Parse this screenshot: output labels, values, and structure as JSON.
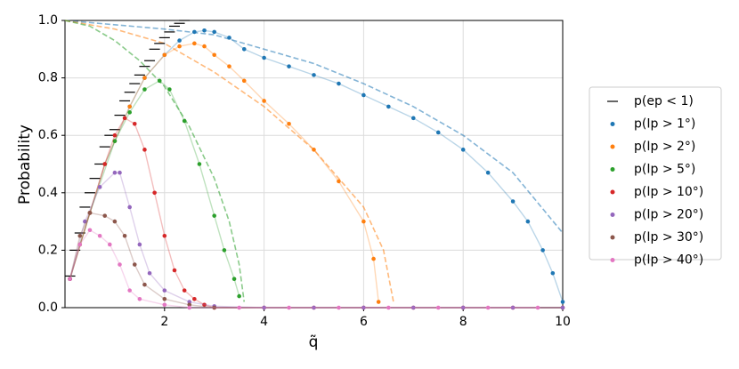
{
  "chart_data": {
    "type": "scatter",
    "xlabel": "q̃",
    "ylabel": "Probability",
    "xlim": [
      0,
      10
    ],
    "ylim": [
      0,
      1
    ],
    "xticks": [
      2,
      4,
      6,
      8,
      10
    ],
    "yticks": [
      {
        "value": 0,
        "label": "0.0"
      },
      0.2,
      0.4,
      0.6,
      0.8,
      {
        "value": 1,
        "label": "1.0"
      }
    ],
    "grid": true,
    "legend": "right",
    "series": [
      {
        "name": "p(ep < 1)",
        "color": "#000000",
        "marker": "hline",
        "x": [
          0.1,
          0.2,
          0.3,
          0.4,
          0.5,
          0.6,
          0.7,
          0.8,
          0.9,
          1.0,
          1.1,
          1.2,
          1.3,
          1.4,
          1.5,
          1.6,
          1.7,
          1.8,
          1.9,
          2.0,
          2.1,
          2.2,
          2.3,
          2.4
        ],
        "values": [
          0.11,
          0.2,
          0.26,
          0.35,
          0.4,
          0.45,
          0.5,
          0.56,
          0.6,
          0.62,
          0.67,
          0.72,
          0.75,
          0.78,
          0.81,
          0.84,
          0.86,
          0.9,
          0.92,
          0.94,
          0.96,
          0.98,
          0.99,
          1.0
        ]
      },
      {
        "name": "p(Ip > 1°)",
        "color": "#1f77b4",
        "marker": "dot",
        "x": [
          0.1,
          0.3,
          0.5,
          0.8,
          1.0,
          1.3,
          1.6,
          2.0,
          2.3,
          2.6,
          2.8,
          3.0,
          3.3,
          3.6,
          4.0,
          4.5,
          5.0,
          5.5,
          6.0,
          6.5,
          7.0,
          7.5,
          8.0,
          8.5,
          9.0,
          9.3,
          9.6,
          9.8,
          10.0
        ],
        "values": [
          0.1,
          0.22,
          0.33,
          0.5,
          0.58,
          0.7,
          0.8,
          0.88,
          0.93,
          0.96,
          0.965,
          0.96,
          0.94,
          0.9,
          0.87,
          0.84,
          0.81,
          0.78,
          0.74,
          0.7,
          0.66,
          0.61,
          0.55,
          0.47,
          0.37,
          0.3,
          0.2,
          0.12,
          0.02
        ]
      },
      {
        "name": "p(Ip > 2°)",
        "color": "#ff7f0e",
        "marker": "dot",
        "x": [
          0.1,
          0.3,
          0.5,
          0.8,
          1.0,
          1.3,
          1.6,
          2.0,
          2.3,
          2.6,
          2.8,
          3.0,
          3.3,
          3.6,
          4.0,
          4.5,
          5.0,
          5.5,
          6.0,
          6.2,
          6.3
        ],
        "values": [
          0.1,
          0.22,
          0.33,
          0.5,
          0.58,
          0.7,
          0.8,
          0.88,
          0.91,
          0.92,
          0.91,
          0.88,
          0.84,
          0.79,
          0.72,
          0.64,
          0.55,
          0.44,
          0.3,
          0.17,
          0.02
        ]
      },
      {
        "name": "p(Ip > 5°)",
        "color": "#2ca02c",
        "marker": "dot",
        "x": [
          0.1,
          0.5,
          1.0,
          1.3,
          1.6,
          1.9,
          2.1,
          2.4,
          2.7,
          3.0,
          3.2,
          3.4,
          3.5
        ],
        "values": [
          0.1,
          0.33,
          0.58,
          0.68,
          0.76,
          0.79,
          0.76,
          0.65,
          0.5,
          0.32,
          0.2,
          0.1,
          0.04
        ]
      },
      {
        "name": "p(Ip > 10°)",
        "color": "#d62728",
        "marker": "dot",
        "x": [
          0.1,
          0.5,
          0.8,
          1.0,
          1.2,
          1.4,
          1.6,
          1.8,
          2.0,
          2.2,
          2.4,
          2.6,
          2.8,
          3.0,
          4.0,
          5.0,
          6.0,
          7.0,
          8.0,
          9.0,
          10.0
        ],
        "values": [
          0.1,
          0.33,
          0.5,
          0.6,
          0.66,
          0.64,
          0.55,
          0.4,
          0.25,
          0.13,
          0.06,
          0.03,
          0.01,
          0,
          0,
          0,
          0,
          0,
          0,
          0,
          0
        ]
      },
      {
        "name": "p(Ip > 20°)",
        "color": "#9467bd",
        "marker": "dot",
        "x": [
          0.1,
          0.4,
          0.7,
          1.0,
          1.1,
          1.3,
          1.5,
          1.7,
          2.0,
          2.5,
          3.0,
          4.0,
          5.0,
          6.0,
          7.0,
          8.0,
          9.0,
          10.0
        ],
        "values": [
          0.1,
          0.3,
          0.42,
          0.47,
          0.47,
          0.35,
          0.22,
          0.12,
          0.06,
          0.02,
          0.005,
          0,
          0,
          0,
          0,
          0,
          0,
          0
        ]
      },
      {
        "name": "p(Ip > 30°)",
        "color": "#8c564b",
        "marker": "dot",
        "x": [
          0.1,
          0.3,
          0.5,
          0.8,
          1.0,
          1.2,
          1.4,
          1.6,
          2.0,
          2.5,
          3.0
        ],
        "values": [
          0.1,
          0.25,
          0.33,
          0.32,
          0.3,
          0.25,
          0.15,
          0.08,
          0.03,
          0.01,
          0
        ]
      },
      {
        "name": "p(Ip > 40°)",
        "color": "#e377c2",
        "marker": "dot",
        "x": [
          0.1,
          0.3,
          0.5,
          0.7,
          0.9,
          1.1,
          1.3,
          1.5,
          2.0,
          2.5,
          3.5,
          4.5,
          5.5,
          6.5,
          7.5,
          8.5,
          9.5
        ],
        "values": [
          0.1,
          0.22,
          0.27,
          0.25,
          0.22,
          0.15,
          0.06,
          0.03,
          0.01,
          0,
          0,
          0,
          0,
          0,
          0,
          0,
          0
        ]
      }
    ],
    "curves": [
      {
        "color": "#1f77b4",
        "x": [
          0,
          2,
          3,
          4,
          5,
          6,
          7,
          8,
          9,
          10
        ],
        "values": [
          1.0,
          0.97,
          0.95,
          0.9,
          0.85,
          0.78,
          0.7,
          0.6,
          0.47,
          0.26
        ]
      },
      {
        "color": "#ff7f0e",
        "x": [
          0,
          1,
          2,
          3,
          4,
          5,
          6,
          6.4,
          6.6
        ],
        "values": [
          1.0,
          0.97,
          0.92,
          0.82,
          0.7,
          0.55,
          0.35,
          0.2,
          0.02
        ]
      },
      {
        "color": "#2ca02c",
        "x": [
          0,
          0.5,
          1,
          1.5,
          2,
          2.5,
          3,
          3.3,
          3.5,
          3.6
        ],
        "values": [
          1.0,
          0.98,
          0.93,
          0.86,
          0.77,
          0.63,
          0.45,
          0.3,
          0.15,
          0.02
        ]
      }
    ]
  }
}
